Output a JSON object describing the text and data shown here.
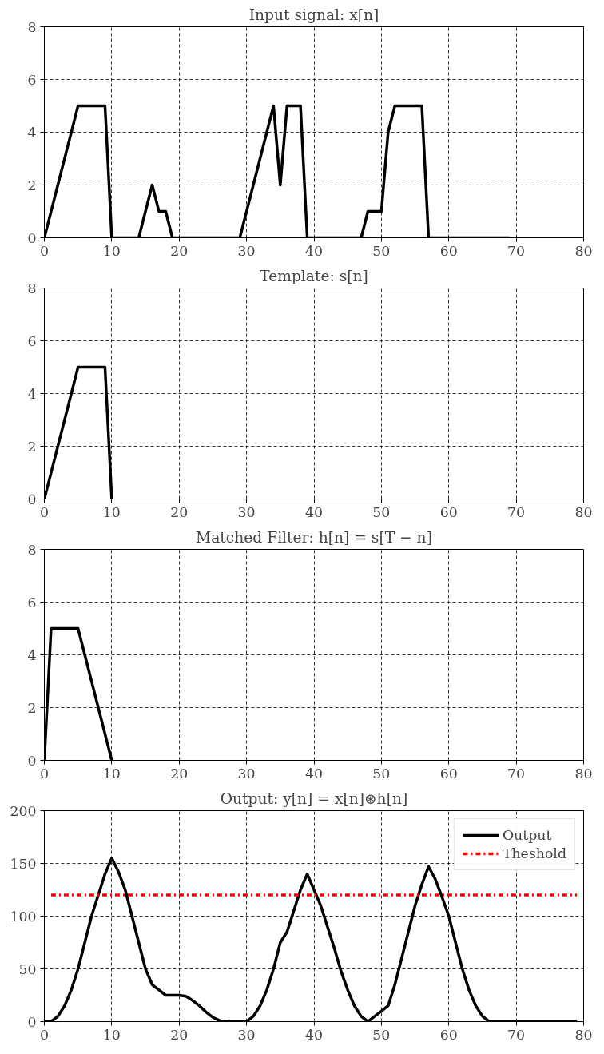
{
  "chart_data": [
    {
      "type": "line",
      "title": "Input signal: x[n]",
      "xlim": [
        0,
        80
      ],
      "ylim": [
        0,
        8
      ],
      "xticks": [
        0,
        10,
        20,
        30,
        40,
        50,
        60,
        70,
        80
      ],
      "yticks": [
        0,
        2,
        4,
        6,
        8
      ],
      "grid": true,
      "line_style": "solid",
      "series": [
        {
          "color": "#000000",
          "x": [
            0,
            5,
            9,
            10,
            14,
            16,
            17,
            18,
            19,
            29,
            34,
            35,
            36,
            38,
            39,
            47,
            48,
            50,
            51,
            52,
            56,
            57,
            69
          ],
          "values": [
            0,
            5,
            5,
            0,
            0,
            2,
            1,
            1,
            0,
            0,
            5,
            2,
            5,
            5,
            0,
            0,
            1,
            1,
            4,
            5,
            5,
            0,
            0
          ]
        }
      ]
    },
    {
      "type": "line",
      "title": "Template: s[n]",
      "xlim": [
        0,
        80
      ],
      "ylim": [
        0,
        8
      ],
      "xticks": [
        0,
        10,
        20,
        30,
        40,
        50,
        60,
        70,
        80
      ],
      "yticks": [
        0,
        2,
        4,
        6,
        8
      ],
      "grid": true,
      "line_style": "solid",
      "series": [
        {
          "color": "#000000",
          "x": [
            0,
            5,
            9,
            10
          ],
          "values": [
            0,
            5,
            5,
            0
          ]
        }
      ]
    },
    {
      "type": "line",
      "title": "Matched Filter: h[n] = s[T − n]",
      "xlim": [
        0,
        80
      ],
      "ylim": [
        0,
        8
      ],
      "xticks": [
        0,
        10,
        20,
        30,
        40,
        50,
        60,
        70,
        80
      ],
      "yticks": [
        0,
        2,
        4,
        6,
        8
      ],
      "grid": true,
      "line_style": "solid",
      "series": [
        {
          "color": "#000000",
          "x": [
            0,
            1,
            5,
            10
          ],
          "values": [
            0,
            5,
            5,
            0
          ]
        }
      ]
    },
    {
      "type": "line",
      "title": "Output: y[n] = x[n]⊛h[n]",
      "xlim": [
        0,
        80
      ],
      "ylim": [
        0,
        200
      ],
      "xticks": [
        0,
        10,
        20,
        30,
        40,
        50,
        60,
        70,
        80
      ],
      "yticks": [
        0,
        50,
        100,
        150,
        200
      ],
      "grid": true,
      "line_style": "solid",
      "legend": "top right",
      "series": [
        {
          "name": "Output",
          "color": "#000000",
          "x": [
            0,
            1,
            2,
            3,
            4,
            5,
            6,
            7,
            8,
            9,
            10,
            11,
            12,
            13,
            14,
            15,
            16,
            17,
            18,
            19,
            20,
            21,
            22,
            23,
            24,
            25,
            26,
            27,
            30,
            31,
            32,
            33,
            34,
            35,
            36,
            37,
            38,
            39,
            40,
            41,
            42,
            43,
            44,
            45,
            46,
            47,
            48,
            49,
            50,
            51,
            52,
            53,
            54,
            55,
            56,
            57,
            58,
            59,
            60,
            61,
            62,
            63,
            64,
            65,
            66,
            79
          ],
          "values": [
            0,
            0,
            5,
            15,
            30,
            50,
            75,
            100,
            120,
            140,
            155,
            142,
            125,
            100,
            75,
            50,
            35,
            30,
            25,
            25,
            25,
            24,
            20,
            15,
            9,
            4,
            1,
            0,
            0,
            5,
            15,
            30,
            50,
            75,
            85,
            105,
            125,
            140,
            125,
            110,
            90,
            70,
            48,
            30,
            15,
            5,
            0,
            5,
            10,
            15,
            35,
            60,
            85,
            110,
            130,
            147,
            135,
            118,
            100,
            75,
            50,
            30,
            15,
            5,
            0,
            0
          ]
        }
      ],
      "ref_lines": [
        {
          "axis": "y",
          "value": 120,
          "label": "Theshold",
          "color": "#ff0000",
          "line_style": "dashdot"
        }
      ]
    }
  ]
}
